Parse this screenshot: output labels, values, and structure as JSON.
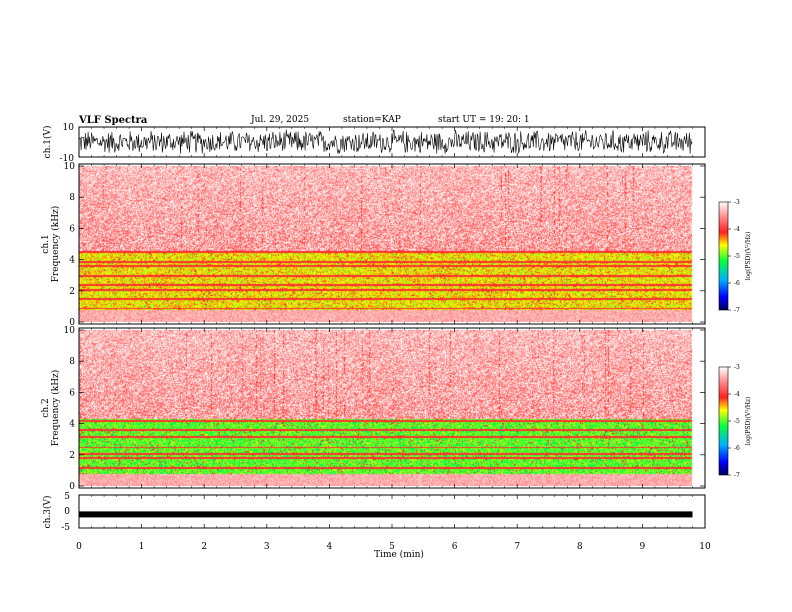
{
  "header": {
    "title": "VLF Spectra",
    "date": "Jul. 29, 2025",
    "station": "station=KAP",
    "start": "start UT =  19: 20: 1"
  },
  "chart_data": [
    {
      "type": "line",
      "panel": "ch1-waveform",
      "ylabel": "ch.1(V)",
      "ylim": [
        -10,
        10
      ],
      "ytick_labels": [
        "10",
        "-10"
      ],
      "xlim": [
        0,
        9.8
      ],
      "description_values": {
        "amplitude_range": [
          -10,
          10
        ]
      }
    },
    {
      "type": "heatmap",
      "panel": "ch1-spectrogram",
      "ylabel_line1": "ch.1",
      "ylabel_line2": "Frequency (kHz)",
      "ylim": [
        0,
        10
      ],
      "ytick_labels": [
        "0",
        "2",
        "4",
        "6",
        "8",
        "10"
      ],
      "xlim": [
        0,
        9.8
      ],
      "noise_floor_khz": 4.6,
      "bands_khz": [
        0.9,
        1.5,
        2.1,
        2.4,
        3.0,
        3.6,
        3.9,
        4.5
      ],
      "colorbar": {
        "label": "log(PSD)(V²/Hz)",
        "range": [
          -7,
          -3
        ],
        "tick_labels": [
          "-3",
          "-4",
          "-5",
          "-6",
          "-7"
        ]
      }
    },
    {
      "type": "heatmap",
      "panel": "ch2-spectrogram",
      "ylabel_line1": "ch.2",
      "ylabel_line2": "Frequency (kHz)",
      "ylim": [
        0,
        10
      ],
      "ytick_labels": [
        "0",
        "2",
        "4",
        "6",
        "8",
        "10"
      ],
      "xlim": [
        0,
        9.8
      ],
      "noise_floor_khz": 4.3,
      "bands_khz": [
        0.6,
        1.2,
        1.8,
        2.1,
        2.5,
        3.2,
        3.6,
        4.2
      ],
      "colorbar": {
        "label": "log(PSD)(V²/Hz)",
        "range": [
          -7,
          -3
        ],
        "tick_labels": [
          "-3",
          "-4",
          "-5",
          "-6",
          "-7"
        ]
      }
    },
    {
      "type": "line",
      "panel": "ch3-waveform",
      "ylabel": "ch.3(V)",
      "ylim": [
        -5,
        5
      ],
      "ytick_labels": [
        "5",
        "0",
        "-5"
      ],
      "xlim": [
        0,
        9.8
      ],
      "signal_level_v": -1.0
    }
  ],
  "xaxis": {
    "label": "Time (min)",
    "range": [
      0,
      10
    ],
    "tick_labels": [
      "0",
      "1",
      "2",
      "3",
      "4",
      "5",
      "6",
      "7",
      "8",
      "9",
      "10"
    ]
  }
}
